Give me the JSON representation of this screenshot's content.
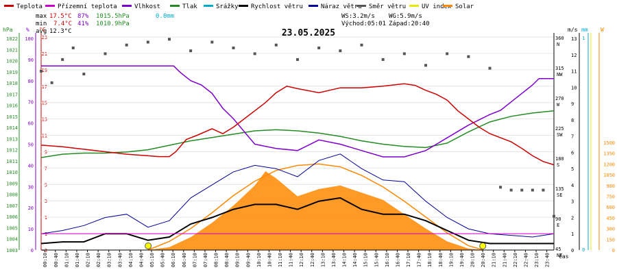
{
  "legend": [
    {
      "label": "Teplota",
      "color": "#cc0000"
    },
    {
      "label": "Přízemní teplota",
      "color": "#cc00cc"
    },
    {
      "label": "Vlhkost",
      "color": "#7f00cc"
    },
    {
      "label": "Tlak",
      "color": "#228b22"
    },
    {
      "label": "Srážky",
      "color": "#00aacc"
    },
    {
      "label": "Rychlost větru",
      "color": "#000000"
    },
    {
      "label": "Náraz větru",
      "color": "#000099"
    },
    {
      "label": "Směr větru",
      "color": "#555555"
    },
    {
      "label": "UV index",
      "color": "#e8e800"
    },
    {
      "label": "Solar",
      "color": "#ff8800"
    }
  ],
  "stats": {
    "max_label": "max",
    "max_temp": "17.5°C",
    "max_hum": "87%",
    "max_pres": "1015.5hPa",
    "max_rain": "0.0mm",
    "min_label": "min",
    "min_temp": "7.4°C",
    "min_hum": "41%",
    "min_pres": "1010.9hPa",
    "avg_label": "avg",
    "avg_temp": "12.3°C",
    "ws": "WS:3.2m/s",
    "wg": "WG:5.9m/s",
    "sunrise": "Východ:05:01",
    "sunset": "Západ:20:40"
  },
  "title": "23.05.2025",
  "axes": {
    "hpa": {
      "unit": "hPa",
      "ticks": [
        1003,
        1004,
        1005,
        1006,
        1007,
        1008,
        1009,
        1010,
        1011,
        1012,
        1013,
        1014,
        1015,
        1016,
        1017,
        1018,
        1019,
        1020,
        1021,
        1022
      ]
    },
    "pct": {
      "unit": "%",
      "ticks": [
        0,
        10,
        20,
        30,
        40,
        50,
        60,
        70,
        80,
        90,
        100
      ]
    },
    "temp": {
      "unit": "°C",
      "ticks": [
        -3,
        -1,
        1,
        3,
        5,
        7,
        9,
        11,
        13,
        15,
        17,
        19,
        21,
        23
      ]
    },
    "ms": {
      "unit": "m/s",
      "ticks": [
        0,
        1,
        2,
        3,
        4,
        5,
        6,
        7,
        8,
        9,
        10,
        11,
        12,
        13
      ]
    },
    "dir": {
      "ticks": [
        "360\nN",
        "315\nNW",
        "270\nW",
        "225\nSW",
        "180\nS",
        "135\nSE",
        "90\nE",
        "45\nNE"
      ]
    },
    "mm": {
      "unit": "mm",
      "ticks": [
        0,
        1
      ]
    },
    "solar": {
      "unit": "W",
      "ticks": [
        0,
        150,
        300,
        450,
        600,
        750,
        900,
        1050,
        1200,
        1350,
        1500
      ]
    },
    "time": {
      "unit": "čas",
      "ticks": [
        "00:10",
        "00:40",
        "01:10",
        "01:40",
        "02:10",
        "02:40",
        "03:10",
        "03:40",
        "04:10",
        "04:40",
        "05:10",
        "05:40",
        "06:10",
        "06:40",
        "07:10",
        "07:40",
        "08:10",
        "08:40",
        "09:10",
        "09:40",
        "10:10",
        "10:40",
        "11:10",
        "11:40",
        "12:10",
        "12:40",
        "13:10",
        "13:40",
        "14:10",
        "14:40",
        "15:10",
        "15:40",
        "16:10",
        "16:40",
        "17:10",
        "17:40",
        "18:10",
        "18:40",
        "19:10",
        "19:40",
        "20:10",
        "20:40",
        "21:10",
        "21:40",
        "22:10",
        "22:40",
        "23:10",
        "23:40"
      ]
    }
  },
  "chart_data": {
    "type": "line",
    "title": "23.05.2025",
    "x_range_hours": [
      0,
      24
    ],
    "series": [
      {
        "name": "Teplota",
        "unit": "°C",
        "color": "#cc0000",
        "x": [
          0,
          1,
          2,
          3,
          4,
          5,
          5.5,
          6,
          6.3,
          6.8,
          7.3,
          8,
          8.5,
          9,
          9.5,
          10,
          10.5,
          11,
          11.5,
          12,
          13,
          14,
          15,
          16,
          17,
          17.5,
          18,
          18.5,
          19,
          19.5,
          20,
          20.5,
          21,
          22,
          22.5,
          23,
          23.5,
          24
        ],
        "y": [
          9.8,
          9.6,
          9.3,
          9.0,
          8.7,
          8.5,
          8.4,
          8.4,
          9.0,
          10.5,
          11.0,
          11.8,
          11.2,
          12.0,
          13.0,
          14.0,
          15.0,
          16.2,
          17.0,
          16.7,
          16.2,
          16.8,
          16.8,
          17.0,
          17.3,
          17.1,
          16.5,
          16.0,
          15.3,
          14.0,
          13.0,
          12.0,
          11.2,
          10.2,
          9.4,
          8.5,
          7.8,
          7.4
        ]
      },
      {
        "name": "Vlhkost",
        "unit": "%",
        "color": "#7f00cc",
        "x": [
          0,
          1,
          2,
          3,
          4,
          5,
          6,
          6.2,
          6.5,
          7,
          7.5,
          8,
          8.5,
          9,
          9.5,
          10,
          11,
          12,
          13,
          14,
          15,
          16,
          17,
          18,
          19,
          20,
          21,
          21.5,
          22,
          23,
          23.3,
          24
        ],
        "y": [
          87,
          87,
          87,
          87,
          87,
          87,
          87,
          87,
          84,
          80,
          78,
          74,
          67,
          62,
          56,
          50,
          48,
          47,
          52,
          50,
          47,
          44,
          44,
          47,
          53,
          59,
          64,
          66,
          70,
          78,
          81,
          81
        ]
      },
      {
        "name": "Tlak",
        "unit": "hPa",
        "color": "#228b22",
        "x": [
          0,
          1,
          2,
          3,
          4,
          5,
          6,
          7,
          8,
          9,
          10,
          11,
          12,
          13,
          14,
          15,
          16,
          17,
          18,
          19,
          20,
          21,
          22,
          23,
          24
        ],
        "y": [
          1011.3,
          1011.6,
          1011.7,
          1011.7,
          1011.8,
          1012.0,
          1012.4,
          1012.8,
          1013.1,
          1013.4,
          1013.7,
          1013.8,
          1013.7,
          1013.5,
          1013.2,
          1012.8,
          1012.5,
          1012.3,
          1012.2,
          1012.6,
          1013.6,
          1014.5,
          1015.0,
          1015.3,
          1015.5
        ]
      },
      {
        "name": "Přízemní teplota",
        "unit": "°C",
        "color": "#cc00cc",
        "x": [
          0,
          24
        ],
        "y": [
          -1,
          -1
        ]
      },
      {
        "name": "Rychlost větru",
        "unit": "m/s",
        "color": "#000000",
        "x": [
          0,
          1,
          2,
          3,
          4,
          5,
          6,
          7,
          8,
          9,
          10,
          11,
          12,
          13,
          14,
          15,
          16,
          17,
          18,
          19,
          20,
          21,
          22,
          23,
          24
        ],
        "y": [
          0.4,
          0.5,
          0.5,
          1.0,
          1.0,
          0.6,
          0.8,
          1.6,
          2.0,
          2.5,
          2.8,
          2.8,
          2.5,
          3.0,
          3.2,
          2.5,
          2.2,
          2.2,
          1.8,
          1.2,
          0.6,
          0.4,
          0.4,
          0.4,
          0.4
        ]
      },
      {
        "name": "Náraz větru",
        "unit": "m/s",
        "color": "#000099",
        "x": [
          0,
          1,
          2,
          3,
          4,
          5,
          6,
          7,
          8,
          9,
          10,
          11,
          12,
          13,
          14,
          15,
          16,
          17,
          18,
          19,
          20,
          21,
          22,
          23,
          24
        ],
        "y": [
          1.0,
          1.2,
          1.5,
          2.0,
          2.2,
          1.4,
          1.8,
          3.2,
          4.0,
          4.8,
          5.2,
          5.0,
          4.5,
          5.5,
          5.9,
          5.0,
          4.3,
          4.2,
          3.0,
          2.0,
          1.3,
          1.0,
          0.9,
          0.8,
          1.0
        ]
      },
      {
        "name": "Solar",
        "unit": "W",
        "color": "#ff8800",
        "x": [
          5,
          6,
          7,
          8,
          9,
          10,
          10.5,
          11,
          12,
          13,
          14,
          15,
          16,
          17,
          18,
          19,
          20,
          20.7
        ],
        "y": [
          0,
          40,
          180,
          380,
          620,
          900,
          1100,
          1000,
          750,
          850,
          900,
          800,
          700,
          500,
          300,
          120,
          20,
          0
        ]
      },
      {
        "name": "Solar max",
        "unit": "W",
        "color": "#ff8800",
        "x": [
          5,
          6,
          7,
          8,
          9,
          10,
          11,
          12,
          13,
          14,
          15,
          16,
          17,
          18,
          19,
          20,
          20.7
        ],
        "y": [
          0,
          120,
          300,
          520,
          760,
          960,
          1110,
          1180,
          1200,
          1160,
          1040,
          880,
          680,
          460,
          240,
          60,
          0
        ]
      },
      {
        "name": "Směr větru",
        "unit": "°",
        "color": "#555555",
        "x": [
          0,
          0.5,
          1,
          1.5,
          2,
          3,
          4,
          5,
          6,
          7,
          8,
          9,
          10,
          11,
          12,
          13,
          14,
          15,
          16,
          17,
          18,
          19,
          20,
          21,
          21.5,
          22,
          22.5,
          23,
          23.5,
          24
        ],
        "y": [
          300,
          280,
          320,
          340,
          295,
          330,
          345,
          350,
          355,
          335,
          350,
          340,
          330,
          345,
          320,
          340,
          335,
          345,
          320,
          330,
          310,
          330,
          325,
          305,
          100,
          95,
          95,
          95,
          95,
          50
        ]
      },
      {
        "name": "UV index",
        "color": "#e8e800",
        "x": [
          5.01,
          20.67
        ],
        "y": [
          0,
          0
        ]
      }
    ]
  }
}
